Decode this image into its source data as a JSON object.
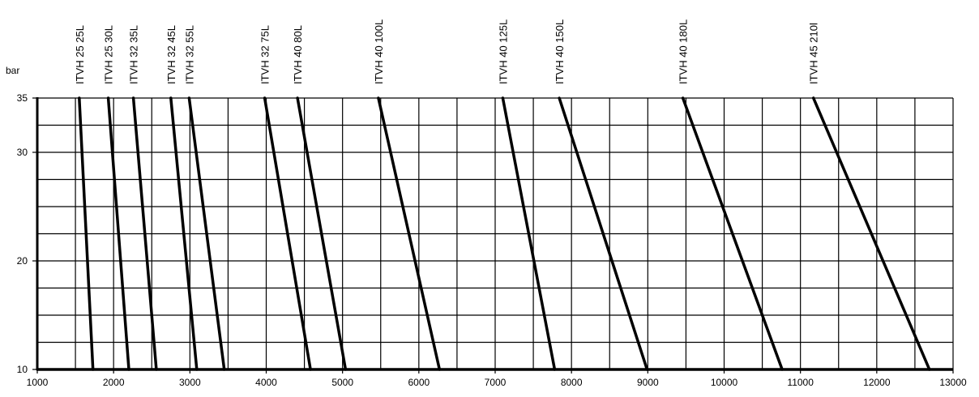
{
  "chart_data": {
    "type": "line",
    "title": "",
    "xlabel": "",
    "ylabel": "bar",
    "xlim": [
      1000,
      13000
    ],
    "ylim": [
      10,
      35
    ],
    "x_ticks": [
      "1000",
      "2000",
      "3000",
      "4000",
      "5000",
      "6000",
      "7000",
      "8000",
      "9000",
      "10000",
      "11000",
      "12000",
      "13000"
    ],
    "y_ticks": [
      "10",
      "20",
      "30",
      "35"
    ],
    "grid": true,
    "series": [
      {
        "name": "ITVH 25 25L",
        "x": [
          1550,
          1730
        ],
        "y": [
          35,
          10
        ]
      },
      {
        "name": "ITVH 25 30L",
        "x": [
          1930,
          2200
        ],
        "y": [
          35,
          10
        ]
      },
      {
        "name": "ITVH 32 35L",
        "x": [
          2260,
          2560
        ],
        "y": [
          35,
          10
        ]
      },
      {
        "name": "ITVH 32 45L",
        "x": [
          2750,
          3090
        ],
        "y": [
          35,
          10
        ]
      },
      {
        "name": "ITVH 32 55L",
        "x": [
          2990,
          3450
        ],
        "y": [
          35,
          10
        ]
      },
      {
        "name": "ITVH 32 75L",
        "x": [
          3980,
          4580
        ],
        "y": [
          35,
          10
        ]
      },
      {
        "name": "ITVH 40 80L",
        "x": [
          4410,
          5040
        ],
        "y": [
          35,
          10
        ]
      },
      {
        "name": "ITVH 40 100L",
        "x": [
          5470,
          6270
        ],
        "y": [
          35,
          10
        ]
      },
      {
        "name": "ITVH 40 125L",
        "x": [
          7100,
          7780
        ],
        "y": [
          35,
          10
        ]
      },
      {
        "name": "ITVH 40 150L",
        "x": [
          7840,
          8990
        ],
        "y": [
          35,
          10
        ]
      },
      {
        "name": "ITVH 40 180L",
        "x": [
          9460,
          10760
        ],
        "y": [
          35,
          10
        ]
      },
      {
        "name": "ITVH 45 210l",
        "x": [
          11170,
          12690
        ],
        "y": [
          35,
          10
        ]
      }
    ]
  }
}
